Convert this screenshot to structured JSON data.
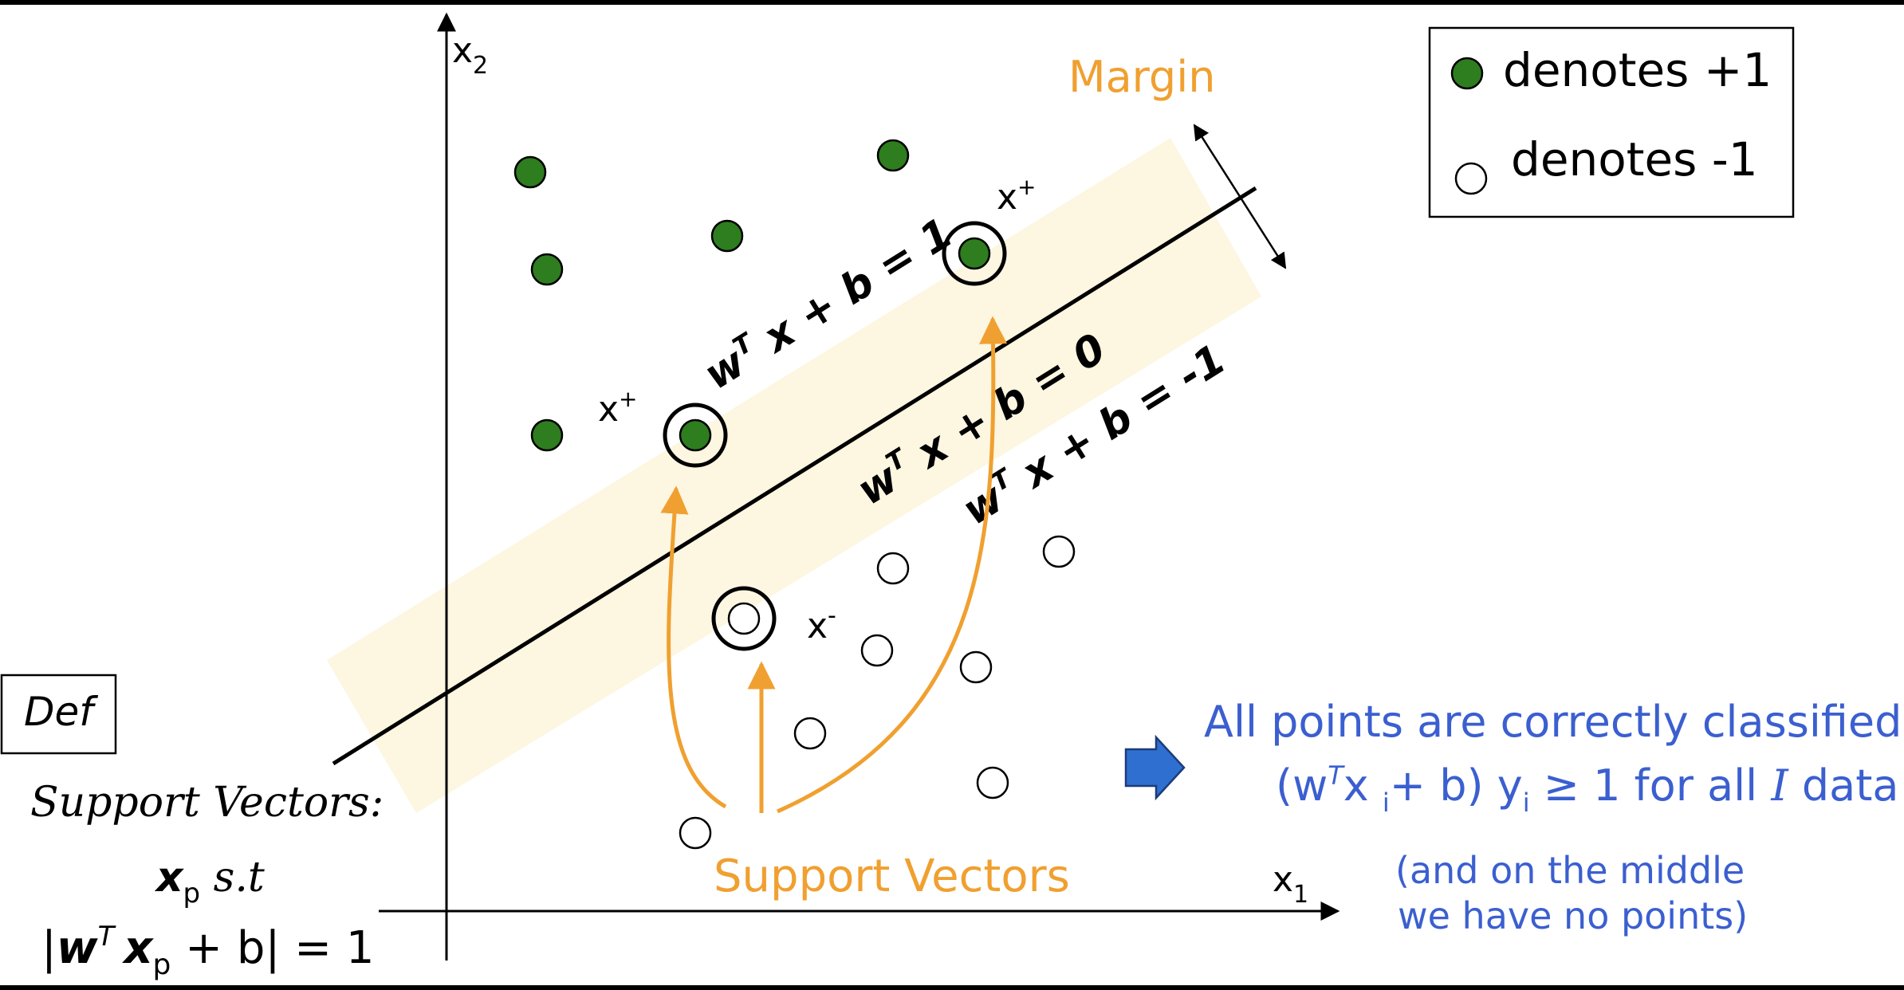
{
  "axes": {
    "x_label": "x",
    "x_sub": "1",
    "y_label": "x",
    "y_sub": "2"
  },
  "legend": {
    "positive_label": "denotes +1",
    "negative_label": "denotes -1"
  },
  "margin_label": "Margin",
  "equations": {
    "upper": {
      "w": "w",
      "sup": "T",
      "rest": " x + b = 1"
    },
    "middle": {
      "w": "w",
      "sup": "T",
      "rest": " x + b = 0"
    },
    "lower": {
      "w": "w",
      "sup": "T",
      "rest": " x + b = -1"
    }
  },
  "point_labels": {
    "x_plus": "x",
    "plus": "+",
    "x_minus": "x",
    "minus": "-"
  },
  "support_vectors_label": "Support Vectors",
  "definition": {
    "box_label": "Def",
    "title": "Support Vectors:",
    "line1_x": "x",
    "line1_sub": "p",
    "line1_rest": " s.t",
    "line2_open": "|",
    "line2_w": "w",
    "line2_sup": "T",
    "line2_x": "x",
    "line2_sub": "p",
    "line2_rest": " + b|  =  1"
  },
  "conclusion": {
    "line1": "All points are correctly classified",
    "line2_open": "(w",
    "line2_sup": "T",
    "line2_x": "x ",
    "line2_sub_i": "i",
    "line2_mid": "+ b) y",
    "line2_sub_i2": "i",
    "line2_rest": " ≥ 1 for all ",
    "line2_I": "I",
    "line2_end": " data",
    "note_line1": "(and on the middle",
    "note_line2": "we have no points)"
  },
  "colors": {
    "positive_fill": "#2e7d1f",
    "orange": "#f0a030",
    "blue_text": "#3b5fd0",
    "band": "#fdf6e0",
    "arrow_blue": "#2f6fd0"
  }
}
